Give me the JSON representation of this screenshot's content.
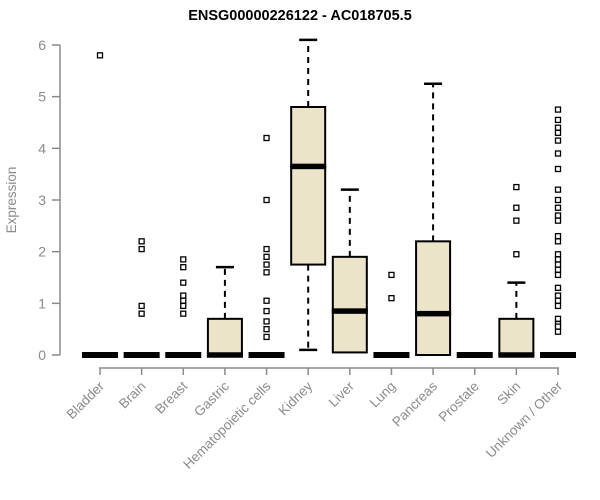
{
  "title": "ENSG00000226122 - AC018705.5",
  "chart_data": {
    "type": "box",
    "title": "ENSG00000226122 - AC018705.5",
    "ylabel": "Expression",
    "xlabel": "",
    "ylim": [
      0,
      6
    ],
    "yticks": [
      0,
      1,
      2,
      3,
      4,
      5,
      6
    ],
    "grid": false,
    "legend": "none",
    "categories": [
      "Bladder",
      "Brain",
      "Breast",
      "Gastric",
      "Hematopoietic cells",
      "Kidney",
      "Liver",
      "Lung",
      "Pancreas",
      "Prostate",
      "Skin",
      "Unknown / Other"
    ],
    "series": [
      {
        "label": "Bladder",
        "flat": true,
        "q1": 0,
        "median": 0,
        "q3": 0,
        "whisker_low": 0,
        "whisker_high": 0,
        "outliers": [
          5.8
        ]
      },
      {
        "label": "Brain",
        "flat": true,
        "q1": 0,
        "median": 0,
        "q3": 0,
        "whisker_low": 0,
        "whisker_high": 0,
        "outliers": [
          2.2,
          2.05,
          0.95,
          0.8
        ]
      },
      {
        "label": "Breast",
        "flat": true,
        "q1": 0,
        "median": 0,
        "q3": 0,
        "whisker_low": 0,
        "whisker_high": 0,
        "outliers": [
          1.85,
          1.7,
          1.4,
          1.15,
          1.05,
          0.95,
          0.8
        ]
      },
      {
        "label": "Gastric",
        "flat": false,
        "q1": 0,
        "median": 0,
        "q3": 0.7,
        "whisker_low": 0,
        "whisker_high": 1.7,
        "outliers": []
      },
      {
        "label": "Hematopoietic cells",
        "flat": true,
        "q1": 0,
        "median": 0,
        "q3": 0,
        "whisker_low": 0,
        "whisker_high": 0,
        "outliers": [
          4.2,
          3.0,
          2.05,
          1.9,
          1.75,
          1.6,
          1.05,
          0.85,
          0.65,
          0.5,
          0.35
        ]
      },
      {
        "label": "Kidney",
        "flat": false,
        "q1": 1.75,
        "median": 3.65,
        "q3": 4.8,
        "whisker_low": 0.1,
        "whisker_high": 6.1,
        "outliers": []
      },
      {
        "label": "Liver",
        "flat": false,
        "q1": 0.05,
        "median": 0.85,
        "q3": 1.9,
        "whisker_low": 0.05,
        "whisker_high": 3.2,
        "outliers": []
      },
      {
        "label": "Lung",
        "flat": true,
        "q1": 0,
        "median": 0,
        "q3": 0,
        "whisker_low": 0,
        "whisker_high": 0,
        "outliers": [
          1.55,
          1.1
        ]
      },
      {
        "label": "Pancreas",
        "flat": false,
        "q1": 0,
        "median": 0.8,
        "q3": 2.2,
        "whisker_low": 0,
        "whisker_high": 5.25,
        "outliers": []
      },
      {
        "label": "Prostate",
        "flat": true,
        "q1": 0,
        "median": 0,
        "q3": 0,
        "whisker_low": 0,
        "whisker_high": 0,
        "outliers": []
      },
      {
        "label": "Skin",
        "flat": false,
        "q1": 0,
        "median": 0,
        "q3": 0.7,
        "whisker_low": 0,
        "whisker_high": 1.4,
        "outliers": [
          3.25,
          2.85,
          2.6,
          1.95
        ]
      },
      {
        "label": "Unknown / Other",
        "flat": true,
        "q1": 0,
        "median": 0,
        "q3": 0,
        "whisker_low": 0,
        "whisker_high": 0,
        "outliers": [
          4.75,
          4.55,
          4.4,
          4.3,
          4.15,
          3.9,
          3.6,
          3.2,
          3.0,
          2.85,
          2.7,
          2.6,
          2.3,
          2.2,
          1.95,
          1.85,
          1.75,
          1.65,
          1.55,
          1.3,
          1.15,
          1.05,
          0.95,
          0.7,
          0.6,
          0.55,
          0.45
        ]
      }
    ],
    "colors": {
      "box_fill": "#ebe4c8",
      "box_stroke": "#000000",
      "median": "#000000",
      "whisker": "#000000",
      "outlier_stroke": "#000000",
      "outlier_fill": "#ffffff",
      "axis": "#8b8b8b",
      "tick_label": "#8b8b8b",
      "title": "#000000"
    }
  }
}
